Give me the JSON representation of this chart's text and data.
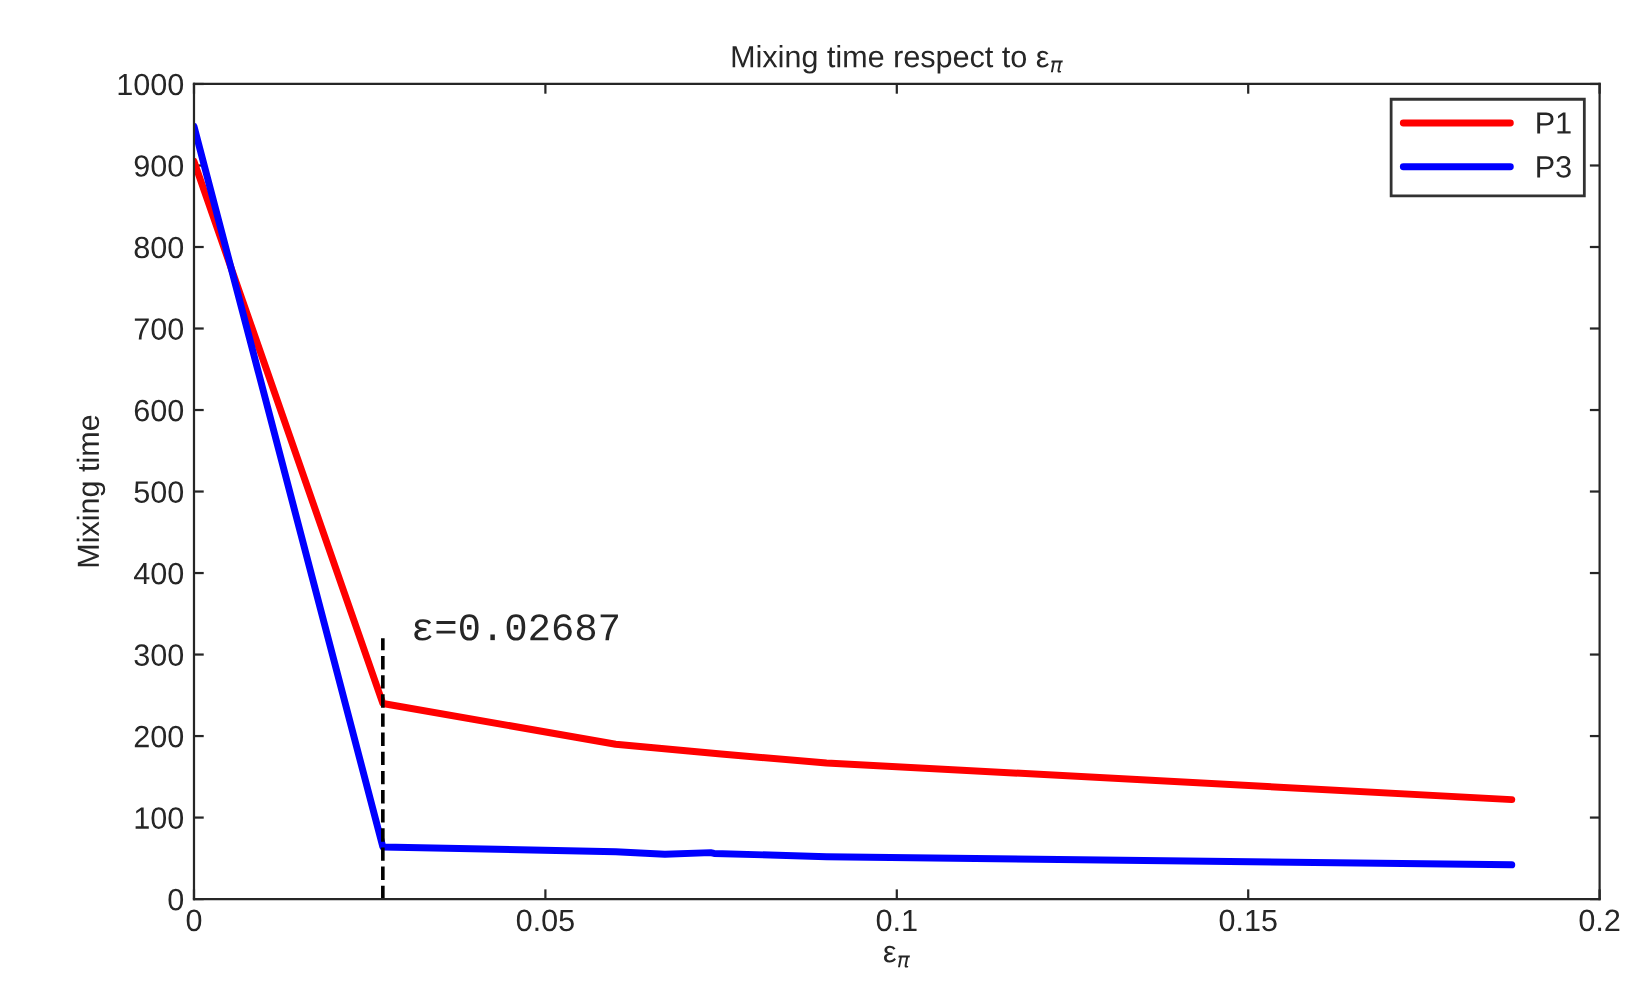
{
  "chart_data": {
    "type": "line",
    "title": "Mixing time respect to ε$_{π}$",
    "xlabel": "ε$_{π}$",
    "ylabel": "Mixing time",
    "xlim": [
      0,
      0.2
    ],
    "xticks": [
      0,
      0.05,
      0.1,
      0.15,
      0.2
    ],
    "ylim": [
      0,
      1000
    ],
    "yticks": [
      0,
      100,
      200,
      300,
      400,
      500,
      600,
      700,
      800,
      900,
      1000
    ],
    "series": [
      {
        "name": "P1",
        "color": "#ff0000",
        "x": [
          0,
          0.02687,
          0.06,
          0.075,
          0.09,
          0.1875
        ],
        "values": [
          905,
          240,
          190,
          178,
          167,
          122
        ]
      },
      {
        "name": "P3",
        "color": "#0000ff",
        "x": [
          0,
          0.02687,
          0.06,
          0.067,
          0.0735,
          0.074,
          0.09,
          0.1875
        ],
        "values": [
          948,
          64,
          58,
          55,
          57,
          56,
          52,
          42
        ]
      }
    ],
    "ref_lines": [
      {
        "axis": "x",
        "value": 0.02687,
        "label": "ε=0.02687",
        "color": "#000000",
        "line_style": "dashed"
      }
    ],
    "legend": "top right",
    "grid": false
  }
}
